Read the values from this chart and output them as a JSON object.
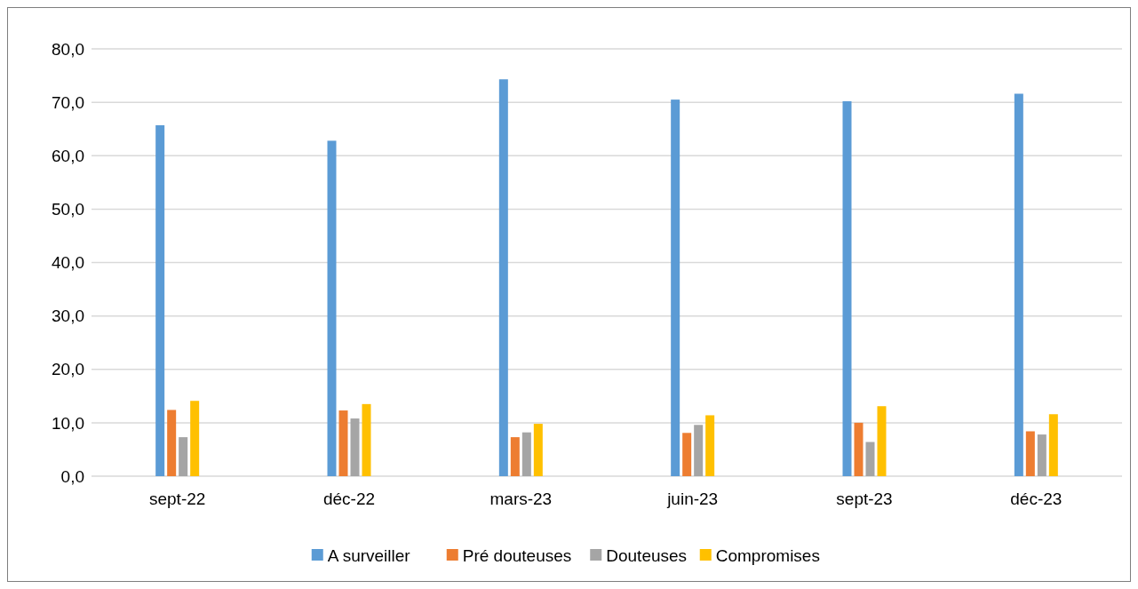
{
  "chart_data": {
    "type": "bar",
    "categories": [
      "sept-22",
      "déc-22",
      "mars-23",
      "juin-23",
      "sept-23",
      "déc-23"
    ],
    "series": [
      {
        "name": "A surveiller",
        "color": "#5b9bd5",
        "values": [
          65.7,
          62.8,
          74.3,
          70.5,
          70.2,
          71.6
        ]
      },
      {
        "name": "Pré douteuses",
        "color": "#ed7d31",
        "values": [
          12.4,
          12.3,
          7.3,
          8.1,
          10.0,
          8.4
        ]
      },
      {
        "name": "Douteuses",
        "color": "#a5a5a5",
        "values": [
          7.3,
          10.8,
          8.2,
          9.6,
          6.4,
          7.8
        ]
      },
      {
        "name": "Compromises",
        "color": "#ffc000",
        "values": [
          14.1,
          13.5,
          9.8,
          11.4,
          13.1,
          11.6
        ]
      }
    ],
    "ylim": [
      0,
      80
    ],
    "yticks": [
      {
        "value": 0,
        "label": "0,0"
      },
      {
        "value": 10,
        "label": "10,0"
      },
      {
        "value": 20,
        "label": "20,0"
      },
      {
        "value": 30,
        "label": "30,0"
      },
      {
        "value": 40,
        "label": "40,0"
      },
      {
        "value": 50,
        "label": "50,0"
      },
      {
        "value": 60,
        "label": "60,0"
      },
      {
        "value": 70,
        "label": "70,0"
      },
      {
        "value": 80,
        "label": "80,0"
      }
    ],
    "grid": "y",
    "legend": "bottom"
  }
}
